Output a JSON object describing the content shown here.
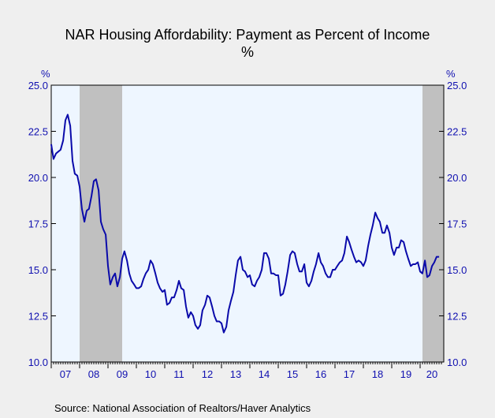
{
  "chart_data": {
    "type": "line",
    "title": "NAR Housing Affordability: Payment as Percent of Income",
    "subtitle": "%",
    "y_unit_left": "%",
    "y_unit_right": "%",
    "ylim": [
      10.0,
      25.0
    ],
    "yticks": [
      "10.0",
      "12.5",
      "15.0",
      "17.5",
      "20.0",
      "22.5",
      "25.0"
    ],
    "xlim": [
      2007.0,
      2020.8333
    ],
    "xticks": [
      "07",
      "08",
      "09",
      "10",
      "11",
      "12",
      "13",
      "14",
      "15",
      "16",
      "17",
      "18",
      "19",
      "20"
    ],
    "grid": false,
    "legend": "none",
    "colors": {
      "line": "#0a0aaa",
      "recession": "#c0c0c0",
      "plot_bg": "#eef6ff",
      "axis_text": "#1010b0"
    },
    "recessions": [
      {
        "start": 2008.0,
        "end": 2009.5
      },
      {
        "start": 2020.0833,
        "end": 2020.8333
      }
    ],
    "series": [
      {
        "values": [
          [
            2007.0,
            21.8
          ],
          [
            2007.08,
            21.0
          ],
          [
            2007.17,
            21.3
          ],
          [
            2007.25,
            21.4
          ],
          [
            2007.33,
            21.5
          ],
          [
            2007.42,
            22.0
          ],
          [
            2007.5,
            23.1
          ],
          [
            2007.58,
            23.4
          ],
          [
            2007.67,
            22.8
          ],
          [
            2007.75,
            20.9
          ],
          [
            2007.83,
            20.2
          ],
          [
            2007.92,
            20.1
          ],
          [
            2008.0,
            19.5
          ],
          [
            2008.08,
            18.3
          ],
          [
            2008.17,
            17.6
          ],
          [
            2008.25,
            18.2
          ],
          [
            2008.33,
            18.3
          ],
          [
            2008.42,
            19.0
          ],
          [
            2008.5,
            19.8
          ],
          [
            2008.58,
            19.9
          ],
          [
            2008.67,
            19.3
          ],
          [
            2008.75,
            17.6
          ],
          [
            2008.83,
            17.2
          ],
          [
            2008.92,
            16.9
          ],
          [
            2009.0,
            15.2
          ],
          [
            2009.08,
            14.2
          ],
          [
            2009.17,
            14.6
          ],
          [
            2009.25,
            14.8
          ],
          [
            2009.33,
            14.1
          ],
          [
            2009.42,
            14.6
          ],
          [
            2009.5,
            15.6
          ],
          [
            2009.58,
            16.0
          ],
          [
            2009.67,
            15.5
          ],
          [
            2009.75,
            14.8
          ],
          [
            2009.83,
            14.4
          ],
          [
            2009.92,
            14.2
          ],
          [
            2010.0,
            14.0
          ],
          [
            2010.08,
            14.0
          ],
          [
            2010.17,
            14.1
          ],
          [
            2010.25,
            14.5
          ],
          [
            2010.33,
            14.8
          ],
          [
            2010.42,
            15.0
          ],
          [
            2010.5,
            15.5
          ],
          [
            2010.58,
            15.3
          ],
          [
            2010.67,
            14.8
          ],
          [
            2010.75,
            14.3
          ],
          [
            2010.83,
            14.0
          ],
          [
            2010.92,
            13.8
          ],
          [
            2011.0,
            13.9
          ],
          [
            2011.08,
            13.1
          ],
          [
            2011.17,
            13.2
          ],
          [
            2011.25,
            13.5
          ],
          [
            2011.33,
            13.5
          ],
          [
            2011.42,
            13.9
          ],
          [
            2011.5,
            14.4
          ],
          [
            2011.58,
            14.0
          ],
          [
            2011.67,
            13.9
          ],
          [
            2011.75,
            13.0
          ],
          [
            2011.83,
            12.4
          ],
          [
            2011.92,
            12.7
          ],
          [
            2012.0,
            12.5
          ],
          [
            2012.08,
            12.0
          ],
          [
            2012.17,
            11.8
          ],
          [
            2012.25,
            12.0
          ],
          [
            2012.33,
            12.8
          ],
          [
            2012.42,
            13.1
          ],
          [
            2012.5,
            13.6
          ],
          [
            2012.58,
            13.5
          ],
          [
            2012.67,
            13.0
          ],
          [
            2012.75,
            12.5
          ],
          [
            2012.83,
            12.2
          ],
          [
            2012.92,
            12.2
          ],
          [
            2013.0,
            12.1
          ],
          [
            2013.08,
            11.6
          ],
          [
            2013.17,
            11.9
          ],
          [
            2013.25,
            12.8
          ],
          [
            2013.33,
            13.3
          ],
          [
            2013.42,
            13.8
          ],
          [
            2013.5,
            14.7
          ],
          [
            2013.58,
            15.5
          ],
          [
            2013.67,
            15.7
          ],
          [
            2013.75,
            15.0
          ],
          [
            2013.83,
            14.9
          ],
          [
            2013.92,
            14.6
          ],
          [
            2014.0,
            14.7
          ],
          [
            2014.08,
            14.2
          ],
          [
            2014.17,
            14.1
          ],
          [
            2014.25,
            14.4
          ],
          [
            2014.33,
            14.6
          ],
          [
            2014.42,
            15.0
          ],
          [
            2014.5,
            15.9
          ],
          [
            2014.58,
            15.9
          ],
          [
            2014.67,
            15.6
          ],
          [
            2014.75,
            14.8
          ],
          [
            2014.83,
            14.8
          ],
          [
            2014.92,
            14.7
          ],
          [
            2015.0,
            14.7
          ],
          [
            2015.08,
            13.6
          ],
          [
            2015.17,
            13.7
          ],
          [
            2015.25,
            14.2
          ],
          [
            2015.33,
            14.9
          ],
          [
            2015.42,
            15.8
          ],
          [
            2015.5,
            16.0
          ],
          [
            2015.58,
            15.9
          ],
          [
            2015.67,
            15.3
          ],
          [
            2015.75,
            14.9
          ],
          [
            2015.83,
            14.9
          ],
          [
            2015.92,
            15.3
          ],
          [
            2016.0,
            14.3
          ],
          [
            2016.08,
            14.1
          ],
          [
            2016.17,
            14.4
          ],
          [
            2016.25,
            14.9
          ],
          [
            2016.33,
            15.3
          ],
          [
            2016.42,
            15.9
          ],
          [
            2016.5,
            15.4
          ],
          [
            2016.58,
            15.2
          ],
          [
            2016.67,
            14.8
          ],
          [
            2016.75,
            14.6
          ],
          [
            2016.83,
            14.6
          ],
          [
            2016.92,
            15.0
          ],
          [
            2017.0,
            15.0
          ],
          [
            2017.08,
            15.2
          ],
          [
            2017.17,
            15.4
          ],
          [
            2017.25,
            15.5
          ],
          [
            2017.33,
            15.9
          ],
          [
            2017.42,
            16.8
          ],
          [
            2017.5,
            16.5
          ],
          [
            2017.58,
            16.1
          ],
          [
            2017.67,
            15.7
          ],
          [
            2017.75,
            15.4
          ],
          [
            2017.83,
            15.5
          ],
          [
            2017.92,
            15.4
          ],
          [
            2018.0,
            15.2
          ],
          [
            2018.08,
            15.5
          ],
          [
            2018.17,
            16.3
          ],
          [
            2018.25,
            16.9
          ],
          [
            2018.33,
            17.4
          ],
          [
            2018.42,
            18.1
          ],
          [
            2018.5,
            17.8
          ],
          [
            2018.58,
            17.6
          ],
          [
            2018.67,
            17.0
          ],
          [
            2018.75,
            17.0
          ],
          [
            2018.83,
            17.4
          ],
          [
            2018.92,
            17.0
          ],
          [
            2019.0,
            16.2
          ],
          [
            2019.08,
            15.8
          ],
          [
            2019.17,
            16.2
          ],
          [
            2019.25,
            16.2
          ],
          [
            2019.33,
            16.6
          ],
          [
            2019.42,
            16.5
          ],
          [
            2019.5,
            16.0
          ],
          [
            2019.58,
            15.6
          ],
          [
            2019.67,
            15.2
          ],
          [
            2019.75,
            15.3
          ],
          [
            2019.83,
            15.3
          ],
          [
            2019.92,
            15.4
          ],
          [
            2020.0,
            14.9
          ],
          [
            2020.08,
            14.8
          ],
          [
            2020.17,
            15.5
          ],
          [
            2020.25,
            14.6
          ],
          [
            2020.33,
            14.7
          ],
          [
            2020.42,
            15.2
          ],
          [
            2020.5,
            15.4
          ],
          [
            2020.58,
            15.7
          ],
          [
            2020.67,
            15.7
          ]
        ]
      }
    ]
  },
  "source": "Source:  National Association of Realtors/Haver Analytics"
}
